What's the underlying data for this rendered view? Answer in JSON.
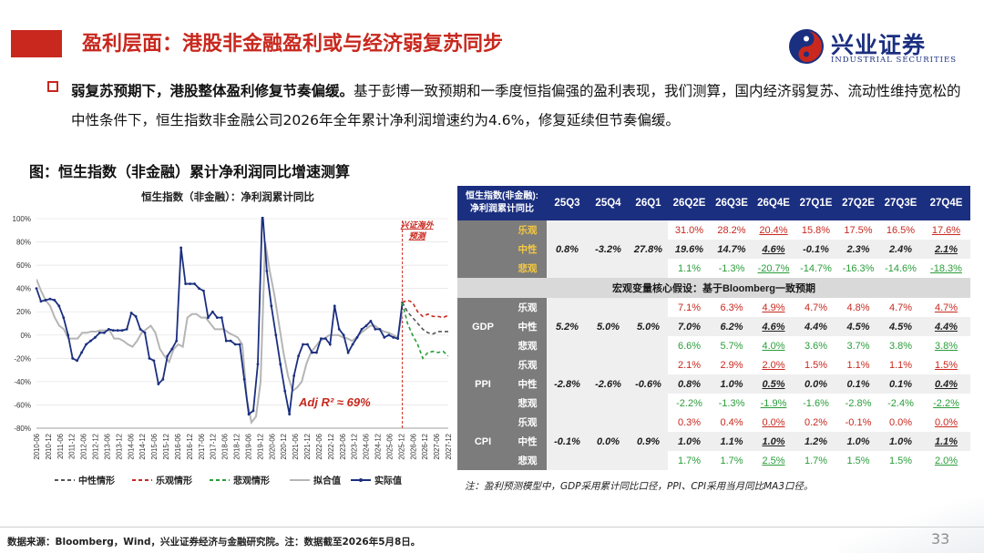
{
  "header": {
    "title": "盈利层面：港股非金融盈利或与经济弱复苏同步",
    "logo_cn": "兴业证券",
    "logo_en": "INDUSTRIAL SECURITIES",
    "brand_color": "#1b2f80",
    "accent_color": "#c8281e"
  },
  "para": {
    "bold": "弱复苏预期下，港股整体盈利修复节奏偏缓。",
    "text": "基于彭博一致预期和一季度恒指偏强的盈利表现，我们测算，国内经济弱复苏、流动性维持宽松的中性条件下，恒生指数非金融公司2026年全年累计净利润增速约为4.6%，修复延续但节奏偏缓。"
  },
  "figure_title": "图：恒生指数（非金融）累计净利润同比增速测算",
  "chart_data": {
    "type": "line",
    "title": "恒生指数（非金融）：净利润累计同比",
    "ylim": [
      -80,
      100
    ],
    "yticks": [
      -80,
      -60,
      -40,
      -20,
      0,
      20,
      40,
      60,
      80,
      100
    ],
    "ytick_labels": [
      "-80%",
      "-60%",
      "-40%",
      "-20%",
      "0%",
      "20%",
      "40%",
      "60%",
      "80%",
      "100%"
    ],
    "xticks": [
      "2010-06",
      "2010-12",
      "2011-06",
      "2011-12",
      "2012-06",
      "2012-12",
      "2013-06",
      "2013-12",
      "2014-06",
      "2014-12",
      "2015-06",
      "2015-12",
      "2016-06",
      "2016-12",
      "2017-06",
      "2017-12",
      "2018-06",
      "2018-12",
      "2019-06",
      "2019-12",
      "2020-06",
      "2020-12",
      "2021-06",
      "2021-12",
      "2022-06",
      "2022-12",
      "2023-06",
      "2023-12",
      "2024-06",
      "2024-12",
      "2025-06",
      "2025-12",
      "2026-06",
      "2026-12",
      "2027-06",
      "2027-12"
    ],
    "annotation_forecast": "兴证海外预测",
    "annotation_r2": "Adj R² ≈ 69%",
    "series": [
      {
        "name": "实际值",
        "color": "#1b2f80",
        "values": [
          40,
          29,
          30,
          31,
          30,
          25,
          15,
          0,
          -20,
          -22,
          -15,
          -8,
          -5,
          -2,
          2,
          2,
          5,
          4,
          4,
          4,
          5,
          19,
          16,
          5,
          2,
          -20,
          -22,
          -42,
          -38,
          -18,
          -12,
          -5,
          75,
          44,
          44,
          44,
          40,
          38,
          15,
          20,
          15,
          15,
          -5,
          -5,
          -8,
          -8,
          -38,
          -68,
          -65,
          -25,
          108,
          55,
          25,
          0,
          -25,
          -48,
          -68,
          -35,
          -18,
          -8,
          -8,
          -15,
          -15,
          -3,
          -3,
          -8,
          25,
          5,
          0,
          -15,
          -8,
          -2,
          5,
          8,
          12,
          5,
          5,
          -2,
          0,
          -2,
          -3,
          28
        ]
      },
      {
        "name": "拟合值",
        "color": "#b5b5b5",
        "values": [
          48,
          38,
          30,
          25,
          15,
          8,
          5,
          -3,
          -3,
          -3,
          2,
          2,
          3,
          3,
          4,
          4,
          4,
          -3,
          -3,
          -5,
          -8,
          -10,
          -5,
          2,
          5,
          8,
          2,
          -12,
          -18,
          -23,
          -12,
          -8,
          -10,
          15,
          18,
          18,
          15,
          15,
          10,
          5,
          5,
          5,
          2,
          0,
          -2,
          -8,
          -55,
          -75,
          -70,
          -40,
          80,
          55,
          35,
          10,
          -15,
          -35,
          -48,
          -45,
          -40,
          -25,
          -15,
          -10,
          -5,
          -3,
          0,
          0,
          0,
          -2,
          -3,
          -5,
          -2,
          2,
          5,
          8,
          8,
          5,
          3,
          2,
          0,
          -2,
          20
        ]
      },
      {
        "name": "中性情形",
        "color": "#555555",
        "dash": "4,3",
        "values": [
          28,
          20,
          15,
          10,
          5,
          2,
          1,
          3,
          3,
          3
        ]
      },
      {
        "name": "乐观情形",
        "color": "#c8281e",
        "dash": "4,3",
        "values": [
          28,
          30,
          28,
          20,
          16,
          18,
          16,
          16,
          15,
          17
        ]
      },
      {
        "name": "悲观情形",
        "color": "#2a9d3a",
        "dash": "4,3",
        "values": [
          28,
          10,
          0,
          -8,
          -20,
          -15,
          -14,
          -15,
          -14,
          -18
        ]
      }
    ],
    "legend_position": "bottom"
  },
  "table": {
    "corner": [
      "恒生指数(非金融):",
      "净利润累计同比"
    ],
    "columns": [
      "25Q3",
      "25Q4",
      "26Q1",
      "26Q2E",
      "26Q3E",
      "26Q4E",
      "27Q1E",
      "27Q2E",
      "27Q3E",
      "27Q4E"
    ],
    "profit": {
      "rows": [
        {
          "label": "乐观",
          "values": [
            "",
            "",
            "",
            "31.0%",
            "28.2%",
            "20.4%",
            "15.8%",
            "17.5%",
            "16.5%",
            "17.6%"
          ]
        },
        {
          "label": "中性",
          "values": [
            "0.8%",
            "-3.2%",
            "27.8%",
            "19.6%",
            "14.7%",
            "4.6%",
            "-0.1%",
            "2.3%",
            "2.4%",
            "2.1%"
          ]
        },
        {
          "label": "悲观",
          "values": [
            "",
            "",
            "",
            "1.1%",
            "-1.3%",
            "-20.7%",
            "-14.7%",
            "-16.3%",
            "-14.6%",
            "-18.3%"
          ]
        }
      ]
    },
    "macro_header": "宏观变量核心假设：基于Bloomberg一致预期",
    "macro": [
      {
        "group": "GDP",
        "rows": [
          {
            "label": "乐观",
            "values": [
              "",
              "",
              "",
              "7.1%",
              "6.3%",
              "4.9%",
              "4.7%",
              "4.8%",
              "4.7%",
              "4.7%"
            ]
          },
          {
            "label": "中性",
            "values": [
              "5.2%",
              "5.0%",
              "5.0%",
              "7.0%",
              "6.2%",
              "4.6%",
              "4.4%",
              "4.5%",
              "4.5%",
              "4.4%"
            ]
          },
          {
            "label": "悲观",
            "values": [
              "",
              "",
              "",
              "6.6%",
              "5.7%",
              "4.0%",
              "3.6%",
              "3.7%",
              "3.8%",
              "3.8%"
            ]
          }
        ]
      },
      {
        "group": "PPI",
        "rows": [
          {
            "label": "乐观",
            "values": [
              "",
              "",
              "",
              "2.1%",
              "2.9%",
              "2.0%",
              "1.5%",
              "1.1%",
              "1.1%",
              "1.5%"
            ]
          },
          {
            "label": "中性",
            "values": [
              "-2.8%",
              "-2.6%",
              "-0.6%",
              "0.8%",
              "1.0%",
              "0.5%",
              "0.0%",
              "0.1%",
              "0.1%",
              "0.4%"
            ]
          },
          {
            "label": "悲观",
            "values": [
              "",
              "",
              "",
              "-2.2%",
              "-1.3%",
              "-1.9%",
              "-1.6%",
              "-2.8%",
              "-2.4%",
              "-2.2%"
            ]
          }
        ]
      },
      {
        "group": "CPI",
        "rows": [
          {
            "label": "乐观",
            "values": [
              "",
              "",
              "",
              "0.3%",
              "0.4%",
              "0.0%",
              "0.2%",
              "-0.1%",
              "0.0%",
              "0.0%"
            ]
          },
          {
            "label": "中性",
            "values": [
              "-0.1%",
              "0.0%",
              "0.9%",
              "1.0%",
              "1.1%",
              "1.0%",
              "1.2%",
              "1.0%",
              "1.0%",
              "1.1%"
            ]
          },
          {
            "label": "悲观",
            "values": [
              "",
              "",
              "",
              "1.7%",
              "1.7%",
              "2.5%",
              "1.7%",
              "1.5%",
              "1.5%",
              "2.0%"
            ]
          }
        ]
      }
    ]
  },
  "note": "注：盈利预测模型中，GDP采用累计同比口径，PPI、CPI采用当月同比MA3口径。",
  "source": "数据来源：Bloomberg，Wind，兴业证券经济与金融研究院。注：数据截至2026年5月8日。",
  "page_number": "33"
}
